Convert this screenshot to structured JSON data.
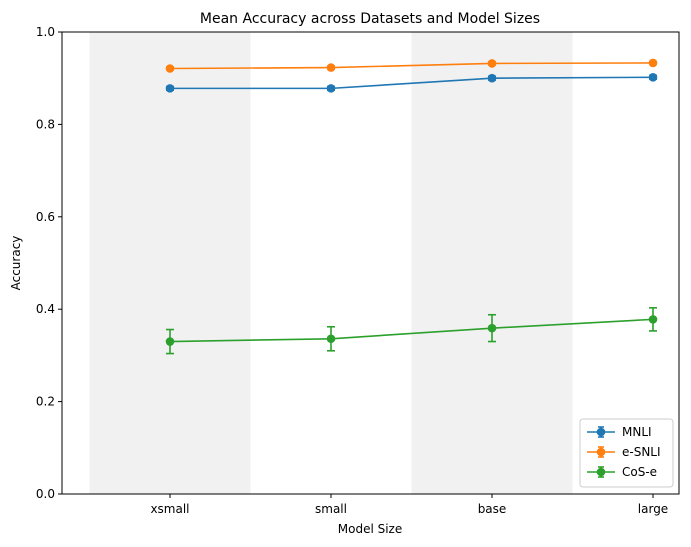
{
  "chart_data": {
    "type": "line",
    "title": "Mean Accuracy across Datasets and Model Sizes",
    "xlabel": "Model Size",
    "ylabel": "Accuracy",
    "categories": [
      "xsmall",
      "small",
      "base",
      "large"
    ],
    "ylim": [
      0.0,
      1.0
    ],
    "yticks": [
      "0.0",
      "0.2",
      "0.4",
      "0.6",
      "0.8",
      "1.0"
    ],
    "grid": false,
    "shaded_bands": [
      "xsmall",
      "base"
    ],
    "legend_position": "lower right",
    "series": [
      {
        "name": "MNLI",
        "color": "#1f77b4",
        "values": [
          0.878,
          0.878,
          0.9,
          0.902
        ],
        "errors": [
          0.004,
          0.004,
          0.004,
          0.004
        ]
      },
      {
        "name": "e-SNLI",
        "color": "#ff7f0e",
        "values": [
          0.921,
          0.923,
          0.932,
          0.933
        ],
        "errors": [
          0.003,
          0.003,
          0.003,
          0.003
        ]
      },
      {
        "name": "CoS-e",
        "color": "#2ca02c",
        "values": [
          0.33,
          0.336,
          0.359,
          0.378
        ],
        "errors": [
          0.026,
          0.026,
          0.029,
          0.025
        ]
      }
    ]
  }
}
